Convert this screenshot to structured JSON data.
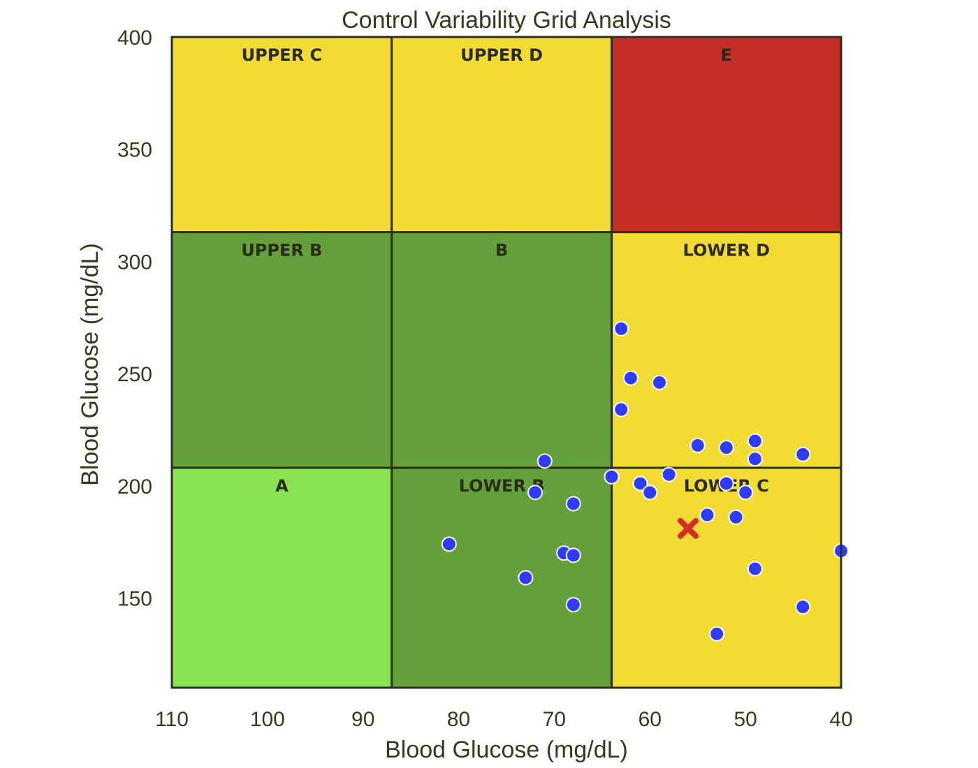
{
  "chart_data": {
    "type": "scatter",
    "title": "Control Variability Grid Analysis",
    "xlabel": "Blood Glucose (mg/dL)",
    "ylabel": "Blood Glucose (mg/dL)",
    "xlim": [
      110,
      40
    ],
    "ylim": [
      110,
      400
    ],
    "x_reversed": true,
    "x_ticks": [
      110,
      100,
      90,
      80,
      70,
      60,
      50,
      40
    ],
    "y_ticks": [
      150,
      200,
      250,
      300,
      350,
      400
    ],
    "grid": false,
    "zones": [
      {
        "label": "UPPER C",
        "x_range": [
          110,
          87
        ],
        "y_range": [
          313,
          400
        ],
        "color": "#f2dc34"
      },
      {
        "label": "UPPER D",
        "x_range": [
          87,
          64
        ],
        "y_range": [
          313,
          400
        ],
        "color": "#f2dc34"
      },
      {
        "label": "E",
        "x_range": [
          64,
          40
        ],
        "y_range": [
          313,
          400
        ],
        "color": "#c62d26"
      },
      {
        "label": "UPPER B",
        "x_range": [
          110,
          87
        ],
        "y_range": [
          208,
          313
        ],
        "color": "#64a13a"
      },
      {
        "label": "B",
        "x_range": [
          87,
          64
        ],
        "y_range": [
          208,
          313
        ],
        "color": "#64a13a"
      },
      {
        "label": "LOWER D",
        "x_range": [
          64,
          40
        ],
        "y_range": [
          208,
          313
        ],
        "color": "#f2dc34"
      },
      {
        "label": "A",
        "x_range": [
          110,
          87
        ],
        "y_range": [
          110,
          208
        ],
        "color": "#8be252"
      },
      {
        "label": "LOWER B",
        "x_range": [
          87,
          64
        ],
        "y_range": [
          110,
          208
        ],
        "color": "#64a13a"
      },
      {
        "label": "LOWER C",
        "x_range": [
          64,
          40
        ],
        "y_range": [
          110,
          208
        ],
        "color": "#f2dc34"
      }
    ],
    "points_color": "#2f3cff",
    "points": [
      {
        "x": 63,
        "y": 270
      },
      {
        "x": 62,
        "y": 248
      },
      {
        "x": 59,
        "y": 246
      },
      {
        "x": 63,
        "y": 234
      },
      {
        "x": 55,
        "y": 218
      },
      {
        "x": 52,
        "y": 217
      },
      {
        "x": 49,
        "y": 220
      },
      {
        "x": 49,
        "y": 212
      },
      {
        "x": 44,
        "y": 214
      },
      {
        "x": 71,
        "y": 211
      },
      {
        "x": 64,
        "y": 204
      },
      {
        "x": 58,
        "y": 205
      },
      {
        "x": 61,
        "y": 201
      },
      {
        "x": 52,
        "y": 201
      },
      {
        "x": 60,
        "y": 197
      },
      {
        "x": 50,
        "y": 197
      },
      {
        "x": 72,
        "y": 197
      },
      {
        "x": 68,
        "y": 192
      },
      {
        "x": 54,
        "y": 187
      },
      {
        "x": 51,
        "y": 186
      },
      {
        "x": 81,
        "y": 174
      },
      {
        "x": 69,
        "y": 170
      },
      {
        "x": 68,
        "y": 169
      },
      {
        "x": 40,
        "y": 171
      },
      {
        "x": 49,
        "y": 163
      },
      {
        "x": 73,
        "y": 159
      },
      {
        "x": 68,
        "y": 147
      },
      {
        "x": 44,
        "y": 146
      },
      {
        "x": 53,
        "y": 134
      }
    ],
    "highlight": {
      "x": 56,
      "y": 181,
      "marker": "x",
      "color": "#d62d26"
    }
  }
}
